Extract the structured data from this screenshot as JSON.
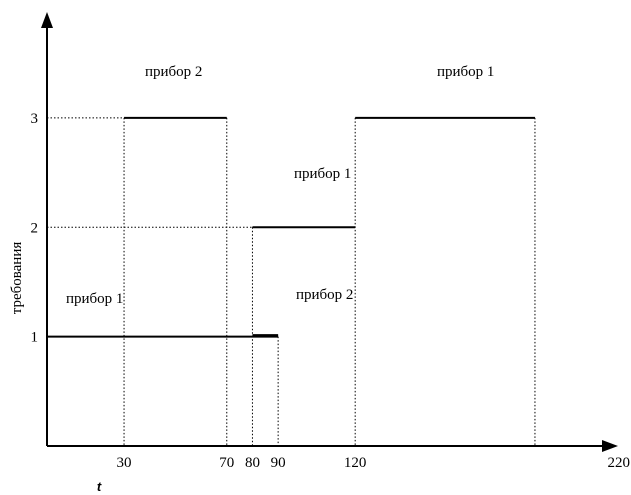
{
  "chart_data": {
    "type": "line",
    "title": "",
    "xlabel": "t",
    "ylabel": "требования",
    "x_ticks": [
      30,
      70,
      80,
      90,
      120,
      220
    ],
    "y_ticks": [
      1,
      2,
      3
    ],
    "xlim": [
      0,
      220
    ],
    "ylim": [
      0,
      3.95
    ],
    "grid": false,
    "segments": [
      {
        "label": "прибор 1",
        "y": 1,
        "x_start": 0,
        "x_end": 90
      },
      {
        "label": "прибор 2",
        "y": 3,
        "x_start": 30,
        "x_end": 70
      },
      {
        "label": "прибор 1",
        "y": 2,
        "x_start": 80,
        "x_end": 120
      },
      {
        "label": "прибор 2",
        "y": 1,
        "x_start": 80,
        "x_end": 90
      },
      {
        "label": "прибор 1",
        "y": 3,
        "x_start": 120,
        "x_end": 190
      }
    ],
    "guides": [
      {
        "x": 30,
        "y": 3
      },
      {
        "x": 70,
        "y": 3
      },
      {
        "x": 80,
        "y": 2
      },
      {
        "x": 90,
        "y": 1
      },
      {
        "x": 120,
        "y": 3
      },
      {
        "x": 190,
        "y": 3
      }
    ]
  }
}
